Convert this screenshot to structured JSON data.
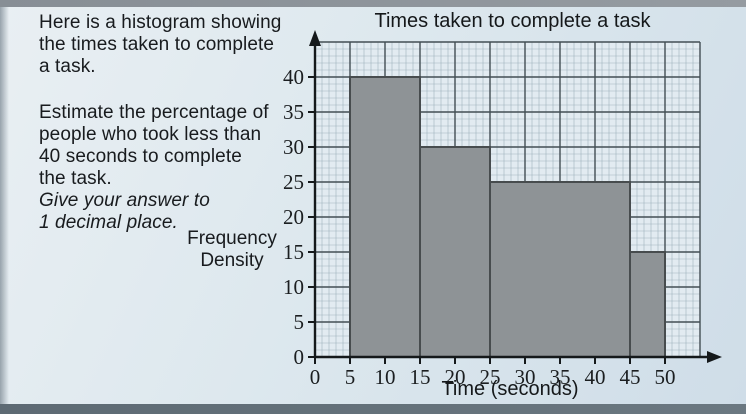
{
  "page": {
    "top_strip_color": "#8d949b",
    "bottom_strip_color": "#68757e",
    "card_color": "#dde8ee"
  },
  "question": {
    "intro_lines": [
      "Here is a histogram showing",
      "the times taken to complete",
      "a task."
    ],
    "task_lines": [
      "Estimate the percentage of",
      "people who took less than",
      "40 seconds to complete",
      "the task."
    ],
    "note_lines": [
      "Give your answer to",
      "1 decimal place."
    ]
  },
  "chart_data": {
    "type": "histogram",
    "title": "Times taken to complete a task",
    "xlabel": "Time (seconds)",
    "ylabel": "Frequency Density",
    "ylabel_lines": [
      "Frequency",
      "Density"
    ],
    "x_ticks": [
      0,
      5,
      10,
      15,
      20,
      25,
      30,
      35,
      40,
      45,
      50
    ],
    "y_ticks": [
      0,
      5,
      10,
      15,
      20,
      25,
      30,
      35,
      40
    ],
    "xlim": [
      0,
      55
    ],
    "ylim": [
      0,
      45
    ],
    "grid": true,
    "legend": false,
    "bars": [
      {
        "x_start": 5,
        "x_end": 15,
        "frequency_density": 40
      },
      {
        "x_start": 15,
        "x_end": 25,
        "frequency_density": 30
      },
      {
        "x_start": 25,
        "x_end": 45,
        "frequency_density": 25
      },
      {
        "x_start": 45,
        "x_end": 50,
        "frequency_density": 15
      }
    ],
    "colors": {
      "bar_fill": "#8e9396",
      "bar_border": "#474c4e",
      "grid_bg": "#e2ebf1",
      "grid_minor": "#8fa3af",
      "grid_major": "#434e54",
      "axis": "#15191b",
      "tick_text": "#1b1e20"
    }
  }
}
